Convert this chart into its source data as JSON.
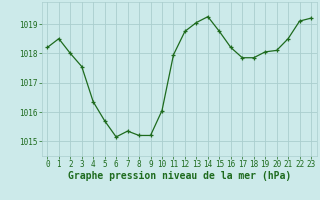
{
  "x": [
    0,
    1,
    2,
    3,
    4,
    5,
    6,
    7,
    8,
    9,
    10,
    11,
    12,
    13,
    14,
    15,
    16,
    17,
    18,
    19,
    20,
    21,
    22,
    23
  ],
  "y": [
    1018.2,
    1018.5,
    1018.0,
    1017.55,
    1016.35,
    1015.7,
    1015.15,
    1015.35,
    1015.2,
    1015.2,
    1016.05,
    1017.95,
    1018.75,
    1019.05,
    1019.25,
    1018.75,
    1018.2,
    1017.85,
    1017.85,
    1018.05,
    1018.1,
    1018.5,
    1019.1,
    1019.2
  ],
  "ylim": [
    1014.5,
    1019.75
  ],
  "yticks": [
    1015,
    1016,
    1017,
    1018,
    1019
  ],
  "xticks": [
    0,
    1,
    2,
    3,
    4,
    5,
    6,
    7,
    8,
    9,
    10,
    11,
    12,
    13,
    14,
    15,
    16,
    17,
    18,
    19,
    20,
    21,
    22,
    23
  ],
  "line_color": "#1e6b1e",
  "marker_color": "#1e6b1e",
  "bg_color": "#cceaea",
  "grid_color": "#aacece",
  "xlabel": "Graphe pression niveau de la mer (hPa)",
  "xlabel_color": "#1e6b1e",
  "tick_color": "#1e6b1e",
  "axis_label_fontsize": 7.0,
  "tick_fontsize": 5.5
}
